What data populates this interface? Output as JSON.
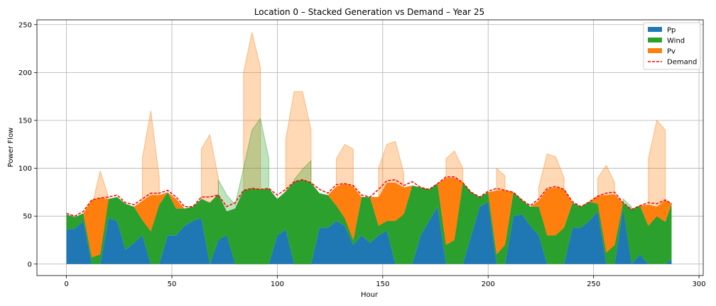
{
  "chart_data": {
    "type": "area",
    "title": "Location 0 – Stacked Generation vs Demand – Year 25",
    "xlabel": "Hour",
    "ylabel": "Power Flow",
    "xlim": [
      -14,
      302
    ],
    "ylim": [
      -12,
      255
    ],
    "xticks": [
      0,
      50,
      100,
      150,
      200,
      250,
      300
    ],
    "yticks": [
      0,
      50,
      100,
      150,
      200,
      250
    ],
    "grid": true,
    "legend_position": "upper right",
    "legend": [
      {
        "label": "Pp",
        "kind": "patch",
        "color": "#1f77b4"
      },
      {
        "label": "Wind",
        "kind": "patch",
        "color": "#2ca02c"
      },
      {
        "label": "Pv",
        "kind": "patch",
        "color": "#ff7f0e"
      },
      {
        "label": "Demand",
        "kind": "dashed-line",
        "color": "#ff0000"
      }
    ],
    "colors": {
      "pp": "#1f77b4",
      "wind": "#2ca02c",
      "pv": "#ff7f0e",
      "demand": "#ff0000",
      "wind_potential_fill": "#2ca02c",
      "pv_potential_fill": "#ff7f0e"
    },
    "series": {
      "hours": [
        0,
        4,
        8,
        12,
        16,
        20,
        24,
        28,
        32,
        36,
        40,
        44,
        48,
        52,
        56,
        60,
        64,
        68,
        72,
        76,
        80,
        84,
        88,
        92,
        96,
        100,
        104,
        108,
        112,
        116,
        120,
        124,
        128,
        132,
        136,
        140,
        144,
        148,
        152,
        156,
        160,
        164,
        168,
        172,
        176,
        180,
        184,
        188,
        192,
        196,
        200,
        204,
        208,
        212,
        216,
        220,
        224,
        228,
        232,
        236,
        240,
        244,
        248,
        252,
        256,
        260,
        264,
        268,
        272,
        276,
        280,
        284,
        287
      ],
      "demand": [
        53,
        50,
        55,
        67,
        69,
        70,
        72,
        64,
        62,
        68,
        74,
        74,
        77,
        70,
        60,
        60,
        70,
        70,
        72,
        60,
        64,
        77,
        79,
        78,
        79,
        72,
        78,
        86,
        88,
        85,
        78,
        74,
        83,
        84,
        82,
        72,
        70,
        78,
        87,
        88,
        82,
        86,
        80,
        78,
        84,
        91,
        91,
        85,
        75,
        70,
        76,
        79,
        77,
        75,
        67,
        61,
        68,
        79,
        81,
        78,
        65,
        60,
        65,
        71,
        74,
        75,
        64,
        57,
        61,
        64,
        63,
        67,
        63
      ],
      "pp": [
        36,
        37,
        45,
        0,
        0,
        48,
        45,
        15,
        22,
        30,
        0,
        0,
        30,
        30,
        40,
        45,
        48,
        0,
        25,
        30,
        0,
        0,
        0,
        0,
        0,
        30,
        36,
        0,
        0,
        0,
        38,
        38,
        45,
        40,
        20,
        30,
        22,
        30,
        35,
        0,
        0,
        0,
        30,
        45,
        60,
        0,
        0,
        0,
        30,
        60,
        65,
        0,
        0,
        50,
        52,
        40,
        30,
        0,
        0,
        0,
        38,
        38,
        45,
        55,
        0,
        0,
        58,
        0,
        10,
        0,
        0,
        0,
        5
      ],
      "wind": [
        16,
        12,
        8,
        7,
        10,
        20,
        25,
        48,
        38,
        16,
        34,
        62,
        45,
        28,
        18,
        15,
        20,
        64,
        48,
        25,
        58,
        77,
        79,
        78,
        79,
        38,
        40,
        86,
        88,
        85,
        36,
        34,
        16,
        8,
        5,
        40,
        48,
        10,
        10,
        45,
        52,
        82,
        50,
        33,
        24,
        20,
        25,
        85,
        45,
        10,
        10,
        10,
        20,
        25,
        15,
        20,
        30,
        30,
        30,
        38,
        26,
        22,
        20,
        8,
        12,
        20,
        6,
        57,
        51,
        40,
        50,
        44,
        58
      ],
      "pv": [
        0,
        0,
        0,
        60,
        59,
        0,
        0,
        0,
        0,
        20,
        38,
        10,
        0,
        10,
        0,
        0,
        0,
        0,
        0,
        0,
        0,
        0,
        0,
        0,
        0,
        0,
        0,
        0,
        0,
        0,
        0,
        0,
        20,
        36,
        56,
        0,
        0,
        30,
        40,
        40,
        28,
        0,
        0,
        0,
        0,
        70,
        65,
        0,
        0,
        0,
        0,
        67,
        57,
        0,
        0,
        0,
        6,
        48,
        50,
        40,
        0,
        0,
        0,
        8,
        60,
        53,
        0,
        0,
        0,
        22,
        10,
        23,
        0
      ],
      "wind_potential": [
        null,
        null,
        null,
        null,
        null,
        null,
        null,
        null,
        null,
        null,
        null,
        null,
        null,
        null,
        null,
        null,
        null,
        null,
        88,
        72,
        62,
        100,
        140,
        152,
        110,
        null,
        null,
        88,
        99,
        108,
        null,
        null,
        null,
        null,
        null,
        null,
        null,
        null,
        null,
        null,
        null,
        null,
        null,
        null,
        null,
        null,
        null,
        null,
        null,
        null,
        null,
        null,
        null,
        null,
        null,
        null,
        null,
        null,
        null,
        null,
        null,
        null,
        null,
        null,
        null,
        null,
        68,
        60,
        null,
        null,
        null,
        null,
        null
      ],
      "pv_total_potential": [
        null,
        null,
        null,
        60,
        97,
        70,
        null,
        null,
        null,
        110,
        160,
        90,
        null,
        null,
        null,
        null,
        120,
        135,
        90,
        null,
        null,
        200,
        242,
        205,
        null,
        null,
        130,
        180,
        180,
        140,
        null,
        null,
        110,
        125,
        120,
        null,
        null,
        100,
        125,
        128,
        95,
        null,
        null,
        null,
        null,
        110,
        118,
        100,
        null,
        null,
        null,
        100,
        92,
        null,
        null,
        null,
        80,
        115,
        112,
        90,
        null,
        null,
        null,
        90,
        103,
        85,
        null,
        null,
        null,
        110,
        150,
        140,
        null
      ]
    }
  }
}
